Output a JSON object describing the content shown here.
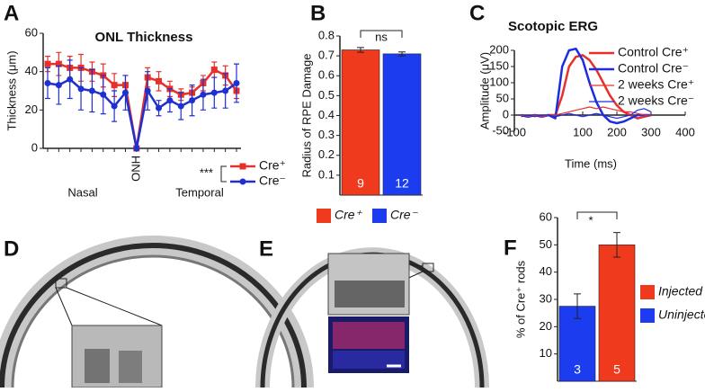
{
  "chart_data": [
    {
      "panel": "A",
      "type": "line",
      "title": "ONL Thickness",
      "ylabel": "Thickness (μm)",
      "categories": [
        null,
        null,
        null,
        null,
        null,
        null,
        null,
        null,
        "ONH",
        null,
        null,
        null,
        null,
        null,
        null,
        null,
        null,
        null
      ],
      "annotations": [
        "Nasal",
        "Temporal",
        "***"
      ],
      "ylim": [
        0,
        60
      ],
      "yticks": [
        0,
        20,
        40,
        60
      ],
      "series": [
        {
          "name": "Cre⁺",
          "color": "#e8302a",
          "marker": "square",
          "line_width": 2.5,
          "values": [
            44,
            44,
            42,
            42,
            40,
            38,
            33,
            33,
            0,
            37,
            35,
            31,
            28,
            29,
            34,
            41,
            38,
            30
          ],
          "errors": [
            4,
            6,
            6,
            7,
            5,
            6,
            6,
            5,
            0,
            5,
            5,
            4,
            3,
            3,
            4,
            4,
            5,
            4
          ]
        },
        {
          "name": "Cre⁻",
          "color": "#2030d0",
          "marker": "circle",
          "line_width": 2.5,
          "values": [
            34,
            33,
            36,
            31,
            30,
            28,
            22,
            29,
            0,
            30,
            21,
            25,
            22,
            25,
            28,
            29,
            30,
            34
          ],
          "errors": [
            8,
            10,
            10,
            11,
            11,
            10,
            8,
            9,
            0,
            10,
            4,
            6,
            7,
            8,
            8,
            8,
            9,
            10
          ]
        }
      ]
    },
    {
      "panel": "B",
      "type": "bar",
      "ylabel": "Radius of RPE Damage",
      "categories": [
        "Cre⁺",
        "Cre⁻"
      ],
      "colors": [
        "#f03a1e",
        "#1c3cf0"
      ],
      "values": [
        0.73,
        0.71
      ],
      "errors": [
        0.012,
        0.01
      ],
      "n_labels": [
        "9",
        "12"
      ],
      "annotations": [
        "ns"
      ],
      "ylim": [
        0,
        0.8
      ],
      "yticks": [
        0.1,
        0.2,
        0.3,
        0.4,
        0.5,
        0.6,
        0.7,
        0.8
      ]
    },
    {
      "panel": "C",
      "type": "line",
      "title": "Scotopic ERG",
      "xlabel": "Time (ms)",
      "ylabel": "Amplitude (μV)",
      "x": [
        -80,
        -60,
        -40,
        -20,
        0,
        20,
        40,
        60,
        80,
        100,
        120,
        140,
        160,
        180,
        200,
        220,
        240,
        260,
        280,
        300
      ],
      "xlim": [
        -100,
        400
      ],
      "xticks": [
        -100,
        100,
        200,
        300,
        400
      ],
      "ylim": [
        -50,
        200
      ],
      "yticks": [
        -50,
        0,
        50,
        100,
        150,
        200
      ],
      "series": [
        {
          "name": "Control Cre⁺",
          "color": "#e8302a",
          "line_width": 2.5,
          "values": [
            0,
            -5,
            0,
            -5,
            0,
            0,
            60,
            150,
            180,
            185,
            170,
            140,
            100,
            60,
            30,
            10,
            0,
            -10,
            -5,
            0
          ]
        },
        {
          "name": "Control Cre⁻",
          "color": "#1c2ee0",
          "line_width": 2.5,
          "values": [
            0,
            -5,
            0,
            -5,
            0,
            -10,
            150,
            200,
            205,
            170,
            100,
            40,
            0,
            -20,
            -25,
            -20,
            -10,
            0,
            0,
            0
          ]
        },
        {
          "name": "2 weeks Cre⁺",
          "color": "#e8302a",
          "line_width": 1.2,
          "values": [
            0,
            -5,
            0,
            -5,
            0,
            0,
            5,
            10,
            15,
            20,
            25,
            20,
            25,
            20,
            15,
            10,
            10,
            5,
            0,
            0
          ]
        },
        {
          "name": "2 weeks Cre⁻",
          "color": "#1c2ee0",
          "line_width": 1.2,
          "values": [
            -5,
            0,
            -5,
            0,
            0,
            -5,
            0,
            5,
            0,
            -5,
            0,
            5,
            0,
            -5,
            -10,
            -5,
            0,
            15,
            20,
            10
          ]
        }
      ]
    },
    {
      "panel": "F",
      "type": "bar",
      "ylabel": "% of Cre⁺ rods",
      "categories": [
        "Uninjected",
        "Injected"
      ],
      "colors": [
        "#1c3cf0",
        "#f03a1e"
      ],
      "values": [
        27.5,
        50
      ],
      "errors": [
        4.5,
        4.5
      ],
      "n_labels": [
        "3",
        "5"
      ],
      "annotations": [
        "*"
      ],
      "ylim": [
        0,
        60
      ],
      "yticks": [
        10,
        20,
        30,
        40,
        50,
        60
      ]
    }
  ],
  "images": [
    {
      "panel": "D"
    },
    {
      "panel": "E"
    }
  ]
}
